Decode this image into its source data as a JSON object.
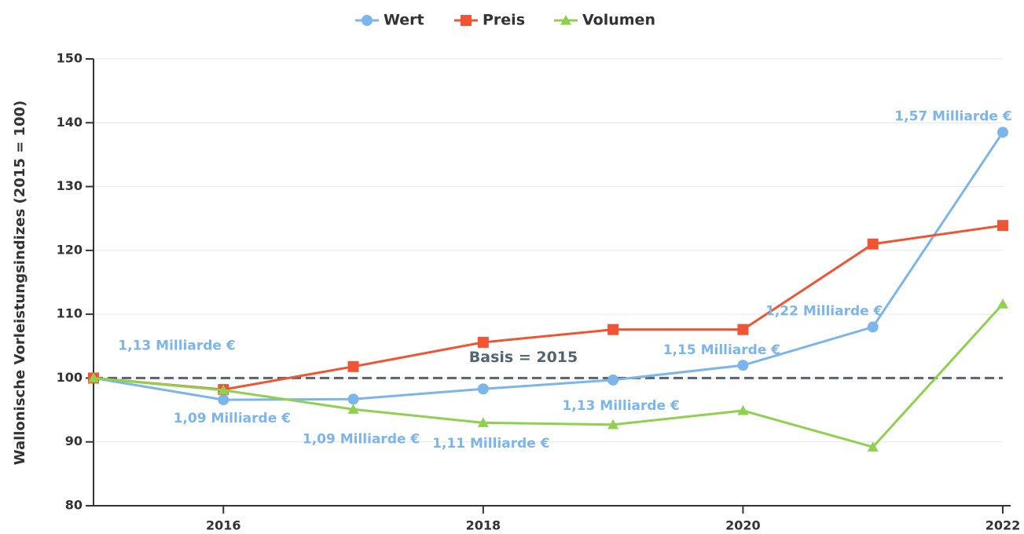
{
  "chart_data": {
    "type": "line",
    "y_label": "Wallonische Vorleistungsindizes (2015 = 100)",
    "x": [
      2015,
      2016,
      2017,
      2018,
      2019,
      2020,
      2021,
      2022
    ],
    "xlim": [
      2015,
      2022
    ],
    "xticks": [
      2016,
      2018,
      2020,
      2022
    ],
    "ylim": [
      80,
      150
    ],
    "yticks": [
      80,
      90,
      100,
      110,
      120,
      130,
      140,
      150
    ],
    "grid": true,
    "legend": "top",
    "reference_line": {
      "value": 100,
      "label": "Basis = 2015",
      "color": "#546570"
    },
    "series": [
      {
        "name": "Wert",
        "color": "#7cb5ec",
        "marker": "circle",
        "values": [
          100,
          96.6,
          96.7,
          98.3,
          99.7,
          102.0,
          108.0,
          138.5
        ],
        "point_labels": [
          "1,13 Milliarde €",
          "1,09 Milliarde €",
          "1,09 Milliarde €",
          "1,11 Milliarde €",
          "1,13 Milliarde €",
          "1,15 Milliarde €",
          "1,22 Milliarde €",
          "1,57 Milliarde €"
        ]
      },
      {
        "name": "Preis",
        "color": "#ef5533",
        "marker": "square",
        "values": [
          100,
          98.2,
          101.8,
          105.6,
          107.6,
          107.6,
          121.0,
          123.9
        ]
      },
      {
        "name": "Volumen",
        "color": "#8fd14f",
        "marker": "triangle",
        "values": [
          100,
          98.1,
          95.1,
          93.0,
          92.7,
          94.9,
          89.2,
          111.6
        ]
      }
    ]
  }
}
